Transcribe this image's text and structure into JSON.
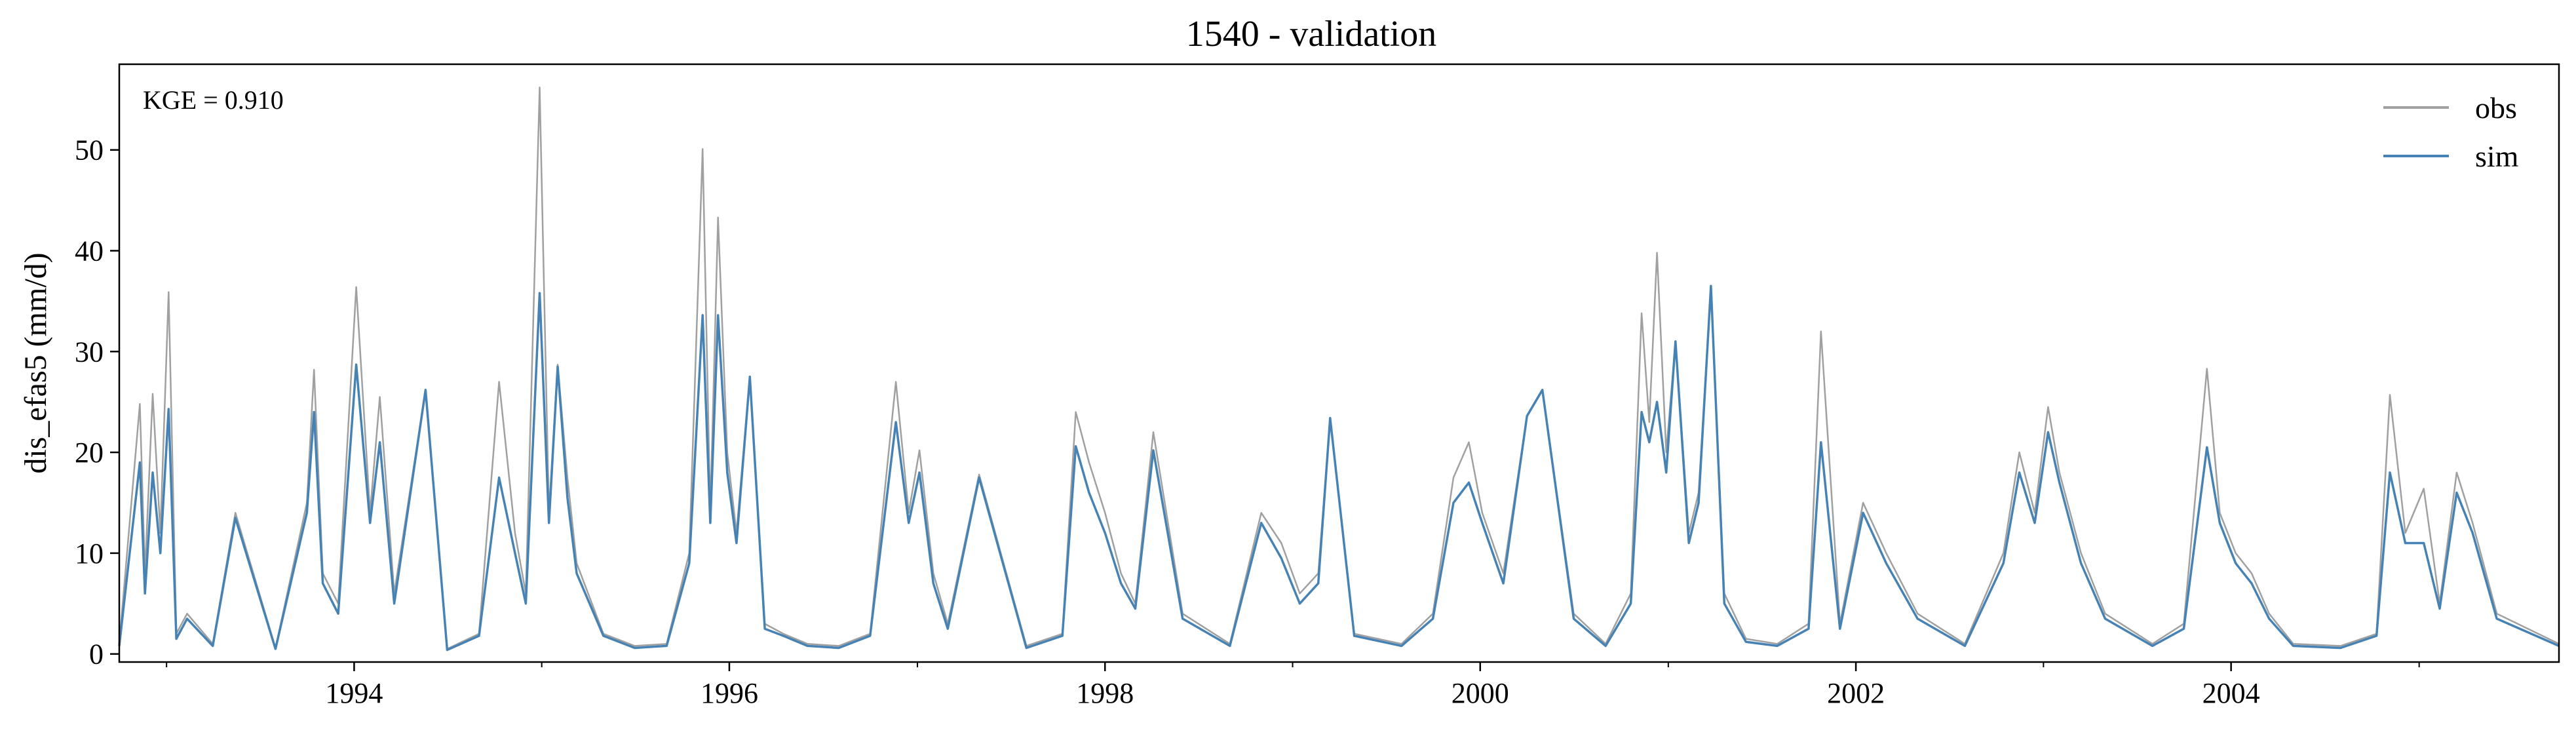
{
  "chart_data": {
    "type": "line",
    "title": "1540 - validation",
    "xlabel": "",
    "ylabel": "dis_efas5 (mm/d)",
    "annotation": "KGE = 0.910",
    "x_range": [
      "1992-10-01",
      "2005-09-30"
    ],
    "ylim": [
      -0.8,
      58.5
    ],
    "x_ticks": [
      {
        "value": "1994-01-01",
        "label": "1994"
      },
      {
        "value": "1996-01-01",
        "label": "1996"
      },
      {
        "value": "1998-01-01",
        "label": "1998"
      },
      {
        "value": "2000-01-01",
        "label": "2000"
      },
      {
        "value": "2002-01-01",
        "label": "2002"
      },
      {
        "value": "2004-01-01",
        "label": "2004"
      }
    ],
    "y_ticks": [
      0,
      10,
      20,
      30,
      40,
      50
    ],
    "legend": {
      "position": "top-right"
    },
    "series": [
      {
        "name": "obs",
        "color": "#a0a0a0",
        "x": [
          "1992-10-01",
          "1992-11-10",
          "1992-11-20",
          "1992-12-05",
          "1992-12-20",
          "1993-01-05",
          "1993-01-20",
          "1993-02-10",
          "1993-04-01",
          "1993-05-15",
          "1993-08-01",
          "1993-10-01",
          "1993-10-15",
          "1993-11-01",
          "1993-12-01",
          "1994-01-05",
          "1994-02-01",
          "1994-02-20",
          "1994-03-20",
          "1994-05-20",
          "1994-07-01",
          "1994-09-01",
          "1994-10-10",
          "1994-11-10",
          "1994-12-01",
          "1994-12-28",
          "1995-01-15",
          "1995-02-01",
          "1995-02-20",
          "1995-03-10",
          "1995-05-01",
          "1995-07-01",
          "1995-09-01",
          "1995-10-15",
          "1995-11-10",
          "1995-11-25",
          "1995-12-10",
          "1995-12-28",
          "1996-01-15",
          "1996-02-10",
          "1996-03-10",
          "1996-04-15",
          "1996-06-01",
          "1996-08-01",
          "1996-10-01",
          "1996-11-20",
          "1996-12-15",
          "1997-01-05",
          "1997-02-01",
          "1997-03-01",
          "1997-05-01",
          "1997-08-01",
          "1997-10-10",
          "1997-11-05",
          "1997-12-01",
          "1998-01-01",
          "1998-02-01",
          "1998-03-01",
          "1998-04-05",
          "1998-06-01",
          "1998-09-01",
          "1998-11-01",
          "1998-12-10",
          "1999-01-15",
          "1999-02-20",
          "1999-03-15",
          "1999-05-01",
          "1999-08-01",
          "1999-10-01",
          "1999-11-10",
          "1999-12-10",
          "2000-01-05",
          "2000-02-15",
          "2000-04-01",
          "2000-05-01",
          "2000-07-01",
          "2000-09-01",
          "2000-10-20",
          "2000-11-10",
          "2000-11-25",
          "2000-12-10",
          "2000-12-28",
          "2001-01-15",
          "2001-02-10",
          "2001-03-01",
          "2001-03-25",
          "2001-04-20",
          "2001-06-01",
          "2001-08-01",
          "2001-10-01",
          "2001-10-25",
          "2001-12-01",
          "2002-01-15",
          "2002-03-01",
          "2002-05-01",
          "2002-08-01",
          "2002-10-15",
          "2002-11-15",
          "2002-12-15",
          "2003-01-10",
          "2003-02-01",
          "2003-03-15",
          "2003-05-01",
          "2003-08-01",
          "2003-10-01",
          "2003-11-15",
          "2003-12-10",
          "2004-01-10",
          "2004-02-10",
          "2004-03-15",
          "2004-05-01",
          "2004-08-01",
          "2004-10-10",
          "2004-11-05",
          "2004-12-05",
          "2005-01-10",
          "2005-02-10",
          "2005-03-15",
          "2005-04-15",
          "2005-06-01",
          "2005-09-30"
        ],
        "y": [
          1.0,
          24.8,
          8.0,
          25.8,
          12.0,
          35.9,
          2.0,
          4.0,
          1.0,
          14.0,
          0.6,
          15.0,
          28.2,
          8.0,
          5.0,
          36.4,
          14.0,
          25.5,
          6.0,
          26.2,
          0.5,
          2.0,
          27.0,
          12.0,
          6.0,
          56.2,
          14.0,
          28.7,
          17.5,
          9.0,
          2.0,
          0.8,
          1.0,
          10.0,
          50.1,
          14.0,
          43.3,
          20.0,
          12.0,
          27.5,
          3.0,
          2.0,
          1.0,
          0.8,
          2.0,
          27.0,
          14.0,
          20.2,
          8.0,
          3.0,
          17.8,
          0.8,
          2.0,
          24.0,
          19.0,
          14.0,
          8.0,
          5.0,
          22.0,
          4.0,
          1.0,
          14.0,
          11.0,
          6.0,
          8.0,
          23.4,
          2.0,
          1.0,
          4.0,
          17.5,
          21.0,
          14.0,
          8.0,
          23.6,
          26.2,
          4.0,
          1.0,
          6.0,
          33.8,
          23.0,
          39.8,
          20.0,
          31.0,
          12.0,
          16.0,
          36.5,
          6.0,
          1.5,
          1.0,
          3.0,
          32.0,
          3.0,
          15.0,
          10.0,
          4.0,
          1.0,
          10.0,
          20.0,
          14.0,
          24.5,
          18.0,
          10.0,
          4.0,
          1.0,
          3.0,
          28.3,
          14.0,
          10.0,
          8.0,
          4.0,
          1.0,
          0.8,
          2.0,
          25.7,
          12.0,
          16.4,
          5.0,
          18.0,
          13.0,
          4.0,
          1.0
        ]
      },
      {
        "name": "sim",
        "color": "#4682b4",
        "x": [
          "1992-10-01",
          "1992-11-10",
          "1992-11-20",
          "1992-12-05",
          "1992-12-20",
          "1993-01-05",
          "1993-01-20",
          "1993-02-10",
          "1993-04-01",
          "1993-05-15",
          "1993-08-01",
          "1993-10-01",
          "1993-10-15",
          "1993-11-01",
          "1993-12-01",
          "1994-01-05",
          "1994-02-01",
          "1994-02-20",
          "1994-03-20",
          "1994-05-20",
          "1994-07-01",
          "1994-09-01",
          "1994-10-10",
          "1994-11-10",
          "1994-12-01",
          "1994-12-28",
          "1995-01-15",
          "1995-02-01",
          "1995-02-20",
          "1995-03-10",
          "1995-05-01",
          "1995-07-01",
          "1995-09-01",
          "1995-10-15",
          "1995-11-10",
          "1995-11-25",
          "1995-12-10",
          "1995-12-28",
          "1996-01-15",
          "1996-02-10",
          "1996-03-10",
          "1996-04-15",
          "1996-06-01",
          "1996-08-01",
          "1996-10-01",
          "1996-11-20",
          "1996-12-15",
          "1997-01-05",
          "1997-02-01",
          "1997-03-01",
          "1997-05-01",
          "1997-08-01",
          "1997-10-10",
          "1997-11-05",
          "1997-12-01",
          "1998-01-01",
          "1998-02-01",
          "1998-03-01",
          "1998-04-05",
          "1998-06-01",
          "1998-09-01",
          "1998-11-01",
          "1998-12-10",
          "1999-01-15",
          "1999-02-20",
          "1999-03-15",
          "1999-05-01",
          "1999-08-01",
          "1999-10-01",
          "1999-11-10",
          "1999-12-10",
          "2000-01-05",
          "2000-02-15",
          "2000-04-01",
          "2000-05-01",
          "2000-07-01",
          "2000-09-01",
          "2000-10-20",
          "2000-11-10",
          "2000-11-25",
          "2000-12-10",
          "2000-12-28",
          "2001-01-15",
          "2001-02-10",
          "2001-03-01",
          "2001-03-25",
          "2001-04-20",
          "2001-06-01",
          "2001-08-01",
          "2001-10-01",
          "2001-10-25",
          "2001-12-01",
          "2002-01-15",
          "2002-03-01",
          "2002-05-01",
          "2002-08-01",
          "2002-10-15",
          "2002-11-15",
          "2002-12-15",
          "2003-01-10",
          "2003-02-01",
          "2003-03-15",
          "2003-05-01",
          "2003-08-01",
          "2003-10-01",
          "2003-11-15",
          "2003-12-10",
          "2004-01-10",
          "2004-02-10",
          "2004-03-15",
          "2004-05-01",
          "2004-08-01",
          "2004-10-10",
          "2004-11-05",
          "2004-12-05",
          "2005-01-10",
          "2005-02-10",
          "2005-03-15",
          "2005-04-15",
          "2005-06-01",
          "2005-09-30"
        ],
        "y": [
          0.8,
          19.0,
          6.0,
          18.0,
          10.0,
          24.3,
          1.5,
          3.5,
          0.8,
          13.5,
          0.5,
          14.0,
          24.0,
          7.0,
          4.0,
          28.7,
          13.0,
          21.0,
          5.0,
          26.2,
          0.4,
          1.8,
          17.5,
          10.0,
          5.0,
          35.8,
          13.0,
          28.5,
          15.5,
          8.0,
          1.8,
          0.6,
          0.8,
          9.0,
          33.6,
          13.0,
          33.6,
          18.0,
          11.0,
          27.5,
          2.5,
          1.8,
          0.8,
          0.6,
          1.8,
          23.0,
          13.0,
          18.0,
          7.0,
          2.5,
          17.5,
          0.6,
          1.8,
          20.6,
          16.0,
          12.0,
          7.0,
          4.5,
          20.2,
          3.5,
          0.8,
          13.0,
          9.5,
          5.0,
          7.0,
          23.4,
          1.8,
          0.8,
          3.5,
          15.0,
          17.0,
          13.0,
          7.0,
          23.6,
          26.2,
          3.5,
          0.8,
          5.0,
          24.0,
          21.0,
          25.0,
          18.0,
          31.0,
          11.0,
          15.0,
          36.5,
          5.0,
          1.2,
          0.8,
          2.5,
          21.0,
          2.5,
          14.0,
          9.0,
          3.5,
          0.8,
          9.0,
          18.0,
          13.0,
          22.0,
          17.0,
          9.0,
          3.5,
          0.8,
          2.5,
          20.5,
          13.0,
          9.0,
          7.0,
          3.5,
          0.8,
          0.6,
          1.8,
          18.0,
          11.0,
          11.0,
          4.5,
          16.0,
          12.0,
          3.5,
          0.8
        ]
      }
    ]
  }
}
